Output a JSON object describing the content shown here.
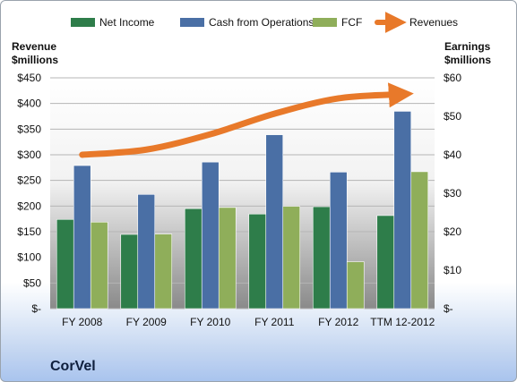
{
  "chart_data": {
    "type": "bar",
    "title": "CorVel",
    "categories": [
      "FY 2008",
      "FY 2009",
      "FY 2010",
      "FY 2011",
      "FY 2012",
      "TTM 12-2012"
    ],
    "series": [
      {
        "name": "Net Income",
        "axis": "right",
        "color": "#2e7d4a",
        "values": [
          23.2,
          19.3,
          26.0,
          24.6,
          26.5,
          24.2
        ]
      },
      {
        "name": "Cash from Operations",
        "axis": "right",
        "color": "#4a6fa5",
        "values": [
          37.2,
          29.7,
          38.1,
          45.2,
          35.5,
          51.3
        ]
      },
      {
        "name": "FCF",
        "axis": "right",
        "color": "#8fae5a",
        "values": [
          22.5,
          19.4,
          26.3,
          26.6,
          12.2,
          35.6
        ]
      },
      {
        "name": "Revenues",
        "axis": "left",
        "type": "line",
        "color": "#e8792a",
        "values": [
          300,
          310,
          340,
          380,
          410,
          418
        ]
      }
    ],
    "y_left": {
      "label_line1": "Revenue",
      "label_line2": "$millions",
      "ylim": [
        0,
        450
      ],
      "ticks": [
        "$-",
        "$50",
        "$100",
        "$150",
        "$200",
        "$250",
        "$300",
        "$350",
        "$400",
        "$450"
      ]
    },
    "y_right": {
      "label_line1": "Earnings",
      "label_line2": "$millions",
      "ylim": [
        0,
        60
      ],
      "ticks": [
        "$-",
        "$10",
        "$20",
        "$30",
        "$40",
        "$50",
        "$60"
      ]
    },
    "legend": {
      "position": "top"
    }
  }
}
